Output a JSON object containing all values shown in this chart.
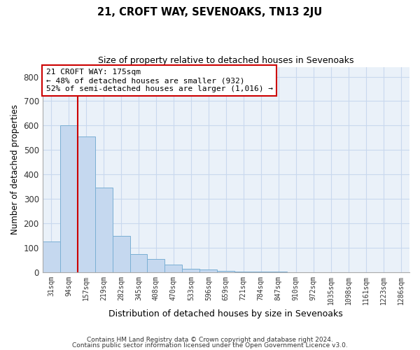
{
  "title": "21, CROFT WAY, SEVENOAKS, TN13 2JU",
  "subtitle": "Size of property relative to detached houses in Sevenoaks",
  "xlabel": "Distribution of detached houses by size in Sevenoaks",
  "ylabel": "Number of detached properties",
  "bar_labels": [
    "31sqm",
    "94sqm",
    "157sqm",
    "219sqm",
    "282sqm",
    "345sqm",
    "408sqm",
    "470sqm",
    "533sqm",
    "596sqm",
    "659sqm",
    "721sqm",
    "784sqm",
    "847sqm",
    "910sqm",
    "972sqm",
    "1035sqm",
    "1098sqm",
    "1161sqm",
    "1223sqm",
    "1286sqm"
  ],
  "bar_values": [
    125,
    600,
    555,
    347,
    150,
    75,
    55,
    33,
    15,
    11,
    5,
    3,
    2,
    2,
    1,
    1,
    1,
    0,
    0,
    0,
    0
  ],
  "bar_color": "#c5d8ef",
  "bar_edge_color": "#7aafd4",
  "vline_x": 1.5,
  "vline_color": "#cc0000",
  "annotation_text": "21 CROFT WAY: 175sqm\n← 48% of detached houses are smaller (932)\n52% of semi-detached houses are larger (1,016) →",
  "annotation_box_color": "#ffffff",
  "annotation_box_edge": "#cc0000",
  "ylim": [
    0,
    840
  ],
  "yticks": [
    0,
    100,
    200,
    300,
    400,
    500,
    600,
    700,
    800
  ],
  "footnote1": "Contains HM Land Registry data © Crown copyright and database right 2024.",
  "footnote2": "Contains public sector information licensed under the Open Government Licence v3.0.",
  "bg_color": "#ffffff",
  "grid_color": "#c8d8ee",
  "plot_bg": "#eaf1f9"
}
